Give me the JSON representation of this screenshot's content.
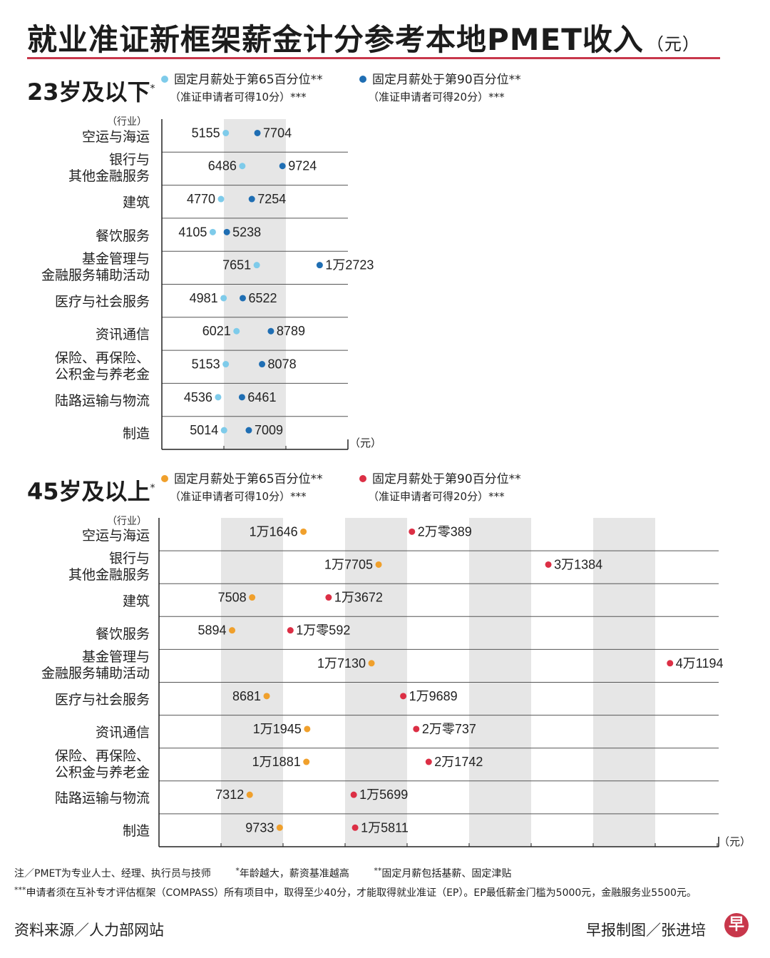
{
  "title": "就业准证新框架薪金计分参考本地PMET收入",
  "title_unit": "（元）",
  "colors": {
    "title_rule": "#c8374b",
    "young_p65": "#7ecbea",
    "young_p90": "#1f6eb3",
    "old_p65": "#f0a02c",
    "old_p90": "#dc2f45",
    "band": "#e6e6e6",
    "grid": "#555555"
  },
  "industry_header": "（行业）",
  "axis_unit": "（元）",
  "sections": [
    {
      "title": "23岁及以下",
      "title_mark": "*",
      "legend": [
        {
          "label": "固定月薪处于第65百分位**",
          "sub": "（准证申请者可得10分）***",
          "color": "#7ecbea"
        },
        {
          "label": "固定月薪处于第90百分位**",
          "sub": "（准证申请者可得20分）***",
          "color": "#1f6eb3"
        }
      ]
    },
    {
      "title": "45岁及以上",
      "title_mark": "*",
      "legend": [
        {
          "label": "固定月薪处于第65百分位**",
          "sub": "（准证申请者可得10分）***",
          "color": "#f0a02c"
        },
        {
          "label": "固定月薪处于第90百分位**",
          "sub": "（准证申请者可得20分）***",
          "color": "#dc2f45"
        }
      ]
    }
  ],
  "notes": {
    "line1": [
      "注／PMET为专业人士、经理、执行员与技师",
      "年龄越大，薪资基准越高",
      "固定月薪包括基薪、固定津贴"
    ],
    "line1_marks": [
      "*",
      "**"
    ],
    "line2_mark": "***",
    "line2": "申请者须在互补专才评估框架（COMPASS）所有项目中，取得至少40分，才能取得就业准证（EP）。EP最低薪金门槛为5000元，金融服务业5500元。"
  },
  "footer": {
    "source": "资料来源／人力部网站",
    "credit": "早报制图／张进培",
    "logo_char": "早"
  },
  "chart_data": [
    {
      "type": "dumbbell",
      "title": "23岁及以下",
      "ylabel": "（行业）",
      "xlabel": "（元）",
      "xlim": [
        0,
        15000
      ],
      "categories": [
        "空运与海运",
        "银行与\n其他金融服务",
        "建筑",
        "餐饮服务",
        "基金管理与\n金融服务辅助活动",
        "医疗与社会服务",
        "资讯通信",
        "保险、再保险、\n公积金与养老金",
        "陆路运输与物流",
        "制造"
      ],
      "series": [
        {
          "name": "固定月薪处于第65百分位",
          "values": [
            5155,
            6486,
            4770,
            4105,
            7651,
            4981,
            6021,
            5153,
            4536,
            5014
          ],
          "labels": [
            "5155",
            "6486",
            "4770",
            "4105",
            "7651",
            "4981",
            "6021",
            "5153",
            "4536",
            "5014"
          ]
        },
        {
          "name": "固定月薪处于第90百分位",
          "values": [
            7704,
            9724,
            7254,
            5238,
            12723,
            6522,
            8789,
            8078,
            6461,
            7009
          ],
          "labels": [
            "7704",
            "9724",
            "7254",
            "5238",
            "1万2723",
            "6522",
            "8789",
            "8078",
            "6461",
            "7009"
          ]
        }
      ]
    },
    {
      "type": "dumbbell",
      "title": "45岁及以上",
      "ylabel": "（行业）",
      "xlabel": "（元）",
      "xlim": [
        0,
        45000
      ],
      "categories": [
        "空运与海运",
        "银行与\n其他金融服务",
        "建筑",
        "餐饮服务",
        "基金管理与\n金融服务辅助活动",
        "医疗与社会服务",
        "资讯通信",
        "保险、再保险、\n公积金与养老金",
        "陆路运输与物流",
        "制造"
      ],
      "series": [
        {
          "name": "固定月薪处于第65百分位",
          "values": [
            11646,
            17705,
            7508,
            5894,
            17130,
            8681,
            11945,
            11881,
            7312,
            9733
          ],
          "labels": [
            "1万1646",
            "1万7705",
            "7508",
            "5894",
            "1万7130",
            "8681",
            "1万1945",
            "1万1881",
            "7312",
            "9733"
          ]
        },
        {
          "name": "固定月薪处于第90百分位",
          "values": [
            20389,
            31384,
            13672,
            10592,
            41194,
            19689,
            20737,
            21742,
            15699,
            15811
          ],
          "labels": [
            "2万零389",
            "3万1384",
            "1万3672",
            "1万零592",
            "4万1194",
            "1万9689",
            "2万零737",
            "2万1742",
            "1万5699",
            "1万5811"
          ]
        }
      ]
    }
  ]
}
